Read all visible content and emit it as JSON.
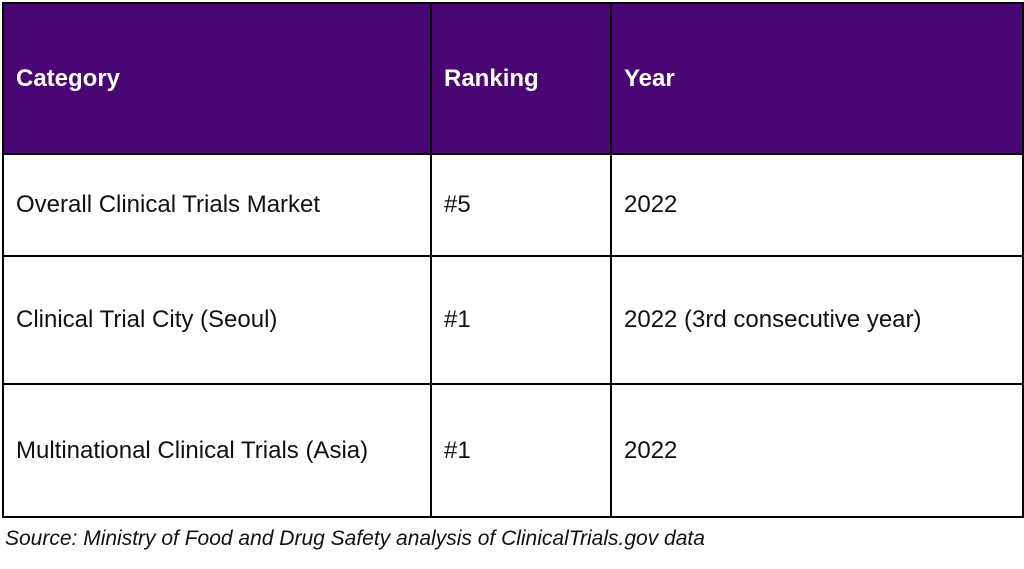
{
  "chart_data": {
    "type": "table",
    "columns": [
      "Category",
      "Ranking",
      "Year"
    ],
    "rows": [
      [
        "Overall Clinical Trials Market",
        "#5",
        "2022"
      ],
      [
        "Clinical Trial City (Seoul)",
        "#1",
        "2022 (3rd consecutive year)"
      ],
      [
        "Multinational Clinical Trials (Asia)",
        "#1",
        "2022"
      ]
    ],
    "source": "Source: Ministry of Food and Drug Safety analysis of ClinicalTrials.gov data"
  },
  "colors": {
    "header_bg": "#4A0672",
    "header_text": "#FFFFFF",
    "body_text": "#111111",
    "border": "#000000",
    "page_bg": "#FFFFFF"
  }
}
